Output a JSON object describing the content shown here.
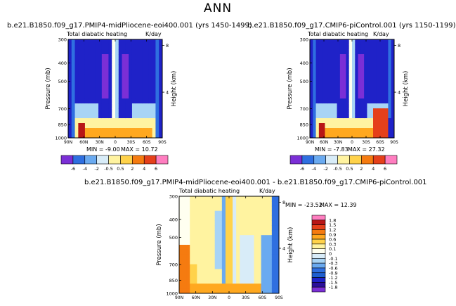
{
  "page": {
    "title": "ANN"
  },
  "chart_data": [
    {
      "type": "heatmap",
      "title": "b.e21.B1850.f09_g17.PMIP4-midPliocene-eoi400.001  (yrs 1450-1499)",
      "subtitle": "Total diabatic heating",
      "units": "K/day",
      "xlabel": "",
      "ylabel": "Pressure (mb)",
      "y2label": "Height (km)",
      "x_ticks": [
        "90N",
        "60N",
        "30N",
        "0",
        "30S",
        "60S",
        "90S"
      ],
      "x_values": [
        90,
        60,
        30,
        0,
        -30,
        -60,
        -90
      ],
      "y_ticks": [
        "300",
        "400",
        "500",
        "700",
        "850",
        "1000"
      ],
      "y_values": [
        300,
        400,
        500,
        700,
        850,
        1000
      ],
      "y2_ticks": [
        "8",
        "4"
      ],
      "y2_values": [
        8,
        4
      ],
      "ylim": [
        1000,
        300
      ],
      "min_label": "MIN =   -9.00",
      "max_label": "MAX =   10.72",
      "min": -9.0,
      "max": 10.72,
      "colorbar": {
        "orientation": "horizontal",
        "labels": [
          "-6",
          "-4",
          "-2",
          "-0.5",
          "0.5",
          "2",
          "4",
          "6"
        ],
        "levels": [
          -6,
          -4,
          -2,
          -0.5,
          0.5,
          2,
          4,
          6
        ]
      }
    },
    {
      "type": "heatmap",
      "title": "b.e21.B1850.f09_g17.CMIP6-piControl.001  (yrs 1150-1199)",
      "subtitle": "Total diabatic heating",
      "units": "K/day",
      "xlabel": "",
      "ylabel": "Pressure (mb)",
      "y2label": "Height (km)",
      "x_ticks": [
        "90N",
        "60N",
        "30N",
        "0",
        "30S",
        "60S",
        "90S"
      ],
      "x_values": [
        90,
        60,
        30,
        0,
        -30,
        -60,
        -90
      ],
      "y_ticks": [
        "300",
        "400",
        "500",
        "700",
        "850",
        "1000"
      ],
      "y_values": [
        300,
        400,
        500,
        700,
        850,
        1000
      ],
      "y2_ticks": [
        "8",
        "4"
      ],
      "y2_values": [
        8,
        4
      ],
      "ylim": [
        1000,
        300
      ],
      "min_label": "MIN =   -7.83",
      "max_label": "MAX =   27.32",
      "min": -7.83,
      "max": 27.32,
      "colorbar": {
        "orientation": "horizontal",
        "labels": [
          "-6",
          "-4",
          "-2",
          "-0.5",
          "0.5",
          "2",
          "4",
          "6"
        ],
        "levels": [
          -6,
          -4,
          -2,
          -0.5,
          0.5,
          2,
          4,
          6
        ]
      }
    },
    {
      "type": "heatmap",
      "title": "b.e21.B1850.f09_g17.PMIP4-midPliocene-eoi400.001  -  b.e21.B1850.f09_g17.CMIP6-piControl.001",
      "subtitle": "Total diabatic heating",
      "units": "K/day",
      "xlabel": "",
      "ylabel": "Pressure (mb)",
      "y2label": "Height (km)",
      "x_ticks": [
        "90N",
        "60N",
        "30N",
        "0",
        "30S",
        "60S",
        "90S"
      ],
      "x_values": [
        90,
        60,
        30,
        0,
        -30,
        -60,
        -90
      ],
      "y_ticks": [
        "300",
        "400",
        "500",
        "700",
        "850",
        "1000"
      ],
      "y_values": [
        300,
        400,
        500,
        700,
        850,
        1000
      ],
      "y2_ticks": [
        "8",
        "4"
      ],
      "y2_values": [
        8,
        4
      ],
      "ylim": [
        1000,
        300
      ],
      "min_label": "MIN =   -23.52",
      "max_label": "MAX =   12.39",
      "min": -23.52,
      "max": 12.39,
      "colorbar": {
        "orientation": "vertical",
        "labels": [
          "1.8",
          "1.5",
          "1.2",
          "0.9",
          "0.6",
          "0.3",
          "0.1",
          "0",
          "-0.1",
          "-0.3",
          "-0.6",
          "-0.9",
          "-1.2",
          "-1.5",
          "-1.8"
        ],
        "levels": [
          1.8,
          1.5,
          1.2,
          0.9,
          0.6,
          0.3,
          0.1,
          0,
          -0.1,
          -0.3,
          -0.6,
          -0.9,
          -1.2,
          -1.5,
          -1.8
        ]
      }
    }
  ],
  "colors": {
    "scale": [
      "#7b2fd6",
      "#1f22c8",
      "#2f6fe0",
      "#6aaaf0",
      "#a8d4f5",
      "#d8ecf8",
      "#fffff0",
      "#fff3a0",
      "#ffd24a",
      "#ffa81f",
      "#f57b10",
      "#e5401a",
      "#b81616",
      "#ff7ec0"
    ],
    "frame": "#000000"
  }
}
